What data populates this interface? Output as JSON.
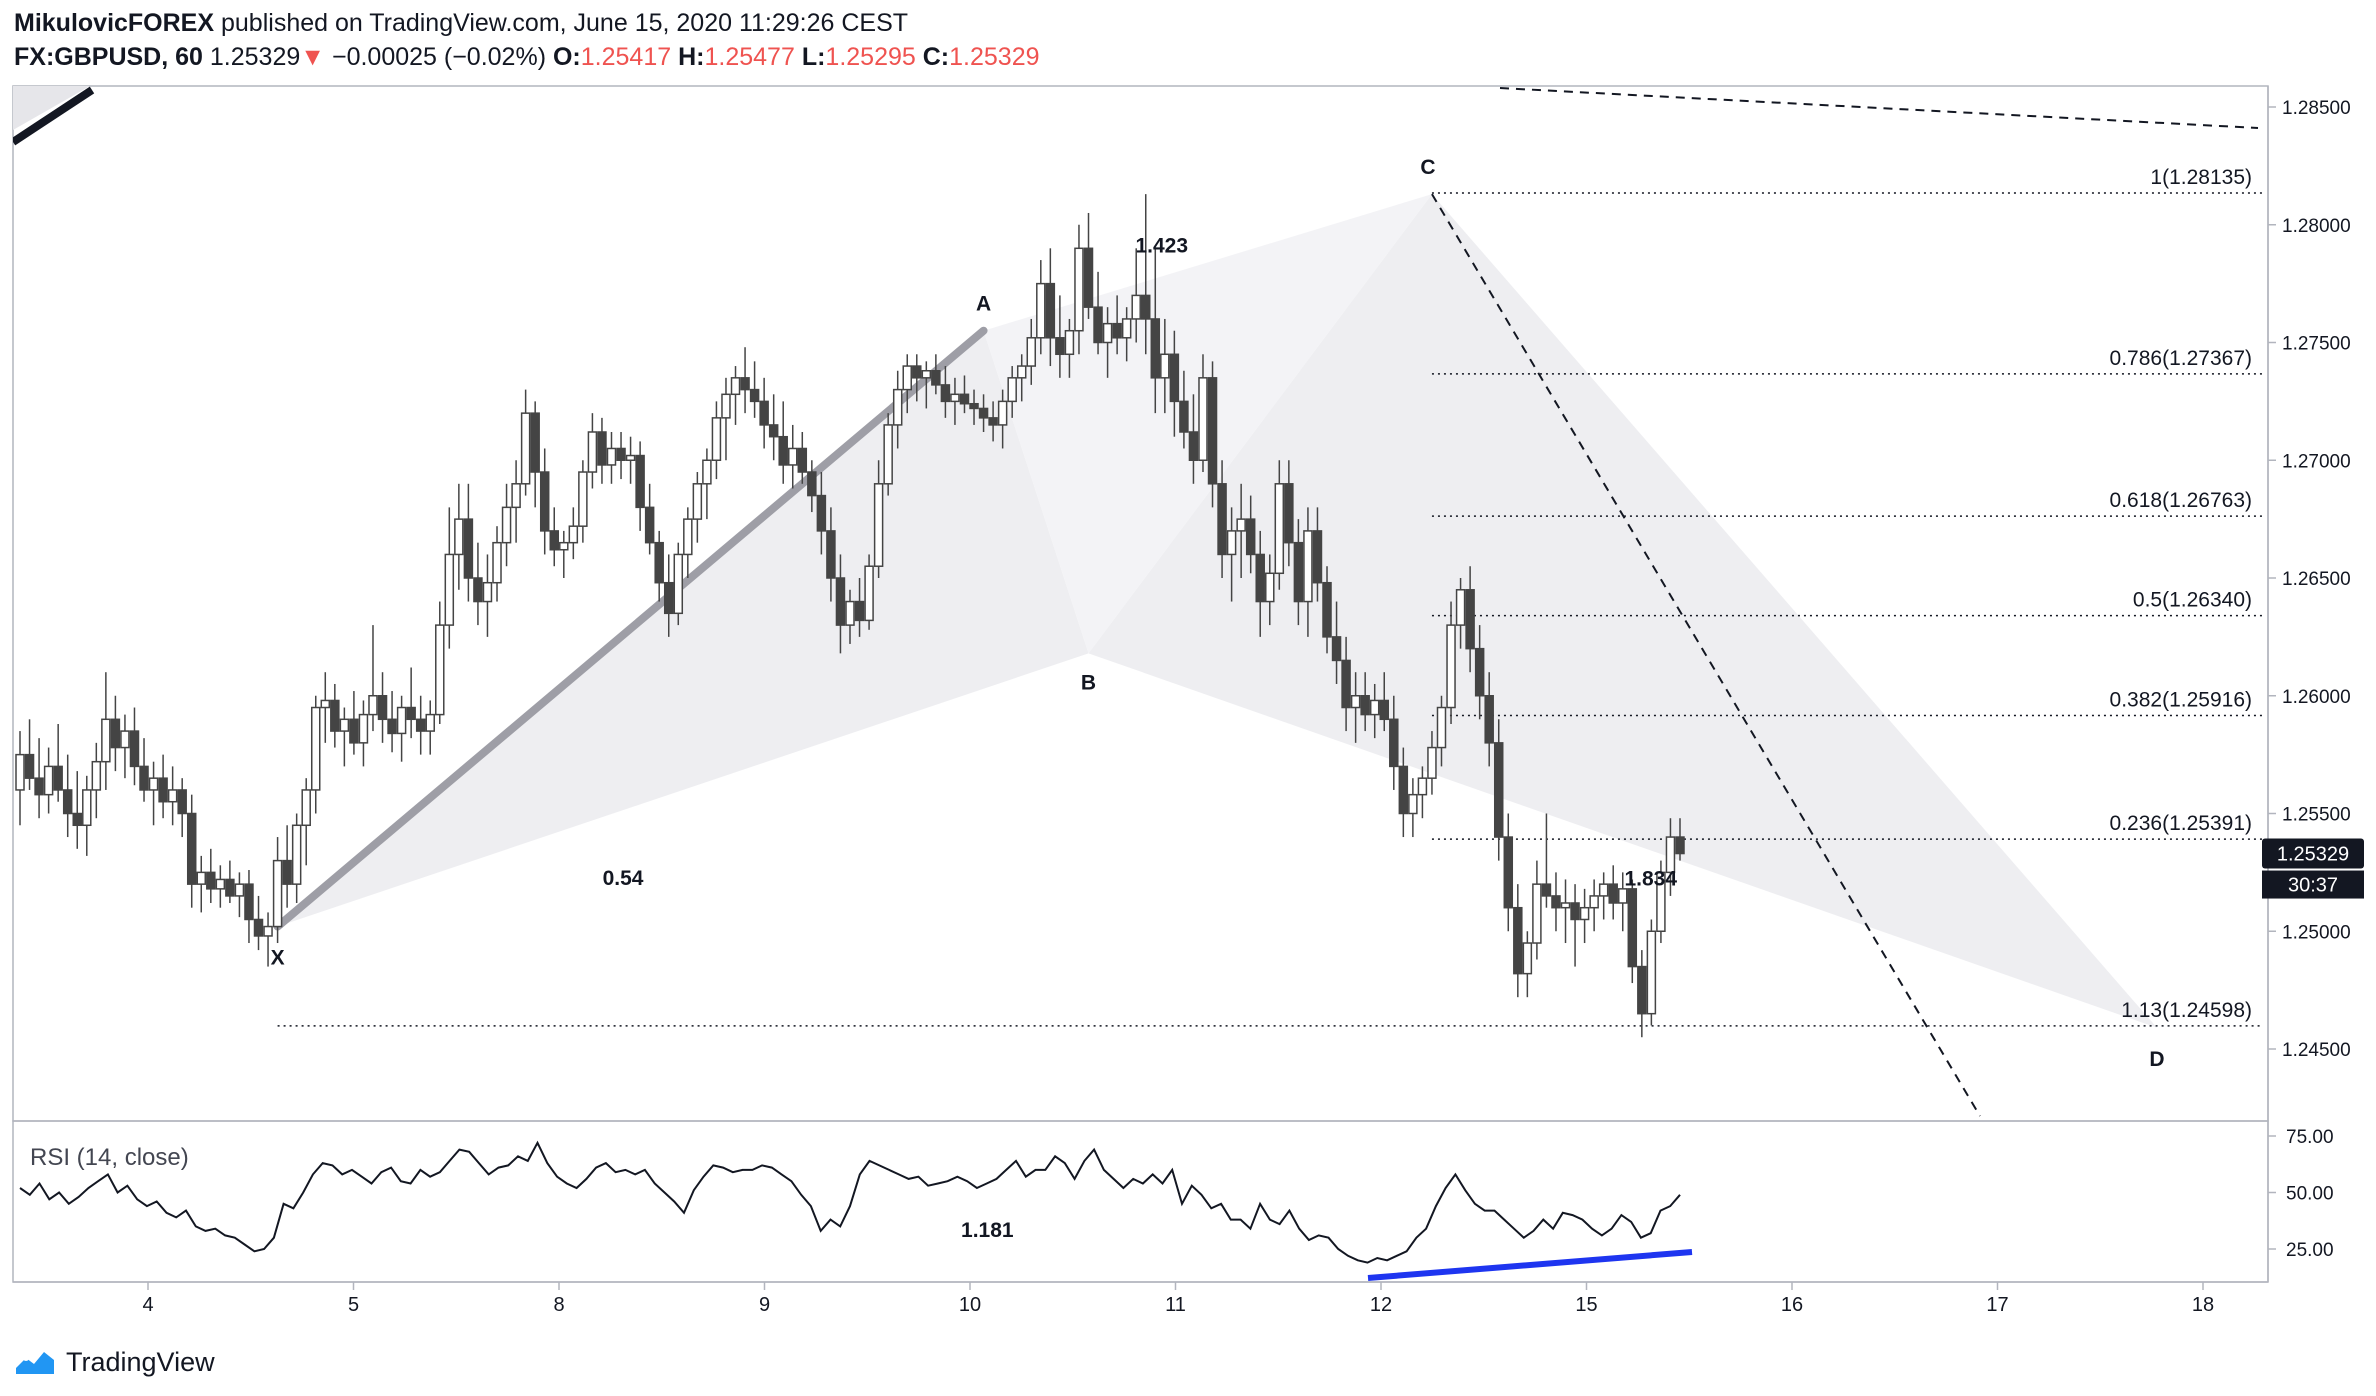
{
  "header": {
    "author": "MikulovicFOREX",
    "published_text": " published on TradingView.com, June 15, 2020 11:29:26 CEST",
    "symbol": "FX:GBPUSD, 60",
    "last": "1.25329",
    "down_arrow": "▼",
    "change": "−0.00025 (−0.02%)",
    "o_label": "O:",
    "o_value": "1.25417",
    "h_label": "H:",
    "h_value": "1.25477",
    "l_label": "L:",
    "l_value": "1.25295",
    "c_label": "C:",
    "c_value": "1.25329"
  },
  "footer": {
    "brand": "TradingView",
    "logo_icon": "tradingview-logo-icon"
  },
  "colors": {
    "up": "#ffffff",
    "down": "#444444",
    "wick": "#444444",
    "pattern_fill": "#ececf0",
    "xa_line": "#9e9ea6",
    "rsi_line": "#131722",
    "divergence": "#1e35f0",
    "price_badge": "#131722"
  },
  "chart_data": {
    "type": "candlestick",
    "price_axis": {
      "min": 1.243,
      "max": 1.286,
      "ticks": [
        "1.28500",
        "1.28000",
        "1.27500",
        "1.27000",
        "1.26500",
        "1.26000",
        "1.25500",
        "1.25000",
        "1.24500"
      ]
    },
    "time_axis": {
      "ticks": [
        "4",
        "5",
        "8",
        "9",
        "10",
        "11",
        "12",
        "15",
        "16",
        "17",
        "18"
      ]
    },
    "last_price_label": "1.25329",
    "countdown_label": "30:37",
    "fib_levels": [
      {
        "label": "1(1.28135)",
        "price": 1.28135
      },
      {
        "label": "0.786(1.27367)",
        "price": 1.27367
      },
      {
        "label": "0.618(1.26763)",
        "price": 1.26763
      },
      {
        "label": "0.5(1.26340)",
        "price": 1.2634
      },
      {
        "label": "0.382(1.25916)",
        "price": 1.25916
      },
      {
        "label": "0.236(1.25391)",
        "price": 1.25391
      },
      {
        "label": "1.13(1.24598)",
        "price": 1.24598
      }
    ],
    "pattern_points": [
      {
        "name": "X",
        "price": 1.2502
      },
      {
        "name": "A",
        "price": 1.2755
      },
      {
        "name": "B",
        "price": 1.2618
      },
      {
        "name": "C",
        "price": 1.2813
      },
      {
        "name": "D",
        "price": 1.2459
      }
    ],
    "ratios": [
      "0.54",
      "1.423",
      "1.834",
      "1.181"
    ],
    "rsi": {
      "label": "RSI (14, close)",
      "ticks": [
        "75.00",
        "50.00",
        "25.00"
      ],
      "min": 10,
      "max": 85
    },
    "candles": [
      [
        1.256,
        1.2585,
        1.2545,
        1.2575
      ],
      [
        1.2575,
        1.259,
        1.256,
        1.2565
      ],
      [
        1.2565,
        1.2582,
        1.2548,
        1.2558
      ],
      [
        1.2558,
        1.2578,
        1.255,
        1.257
      ],
      [
        1.257,
        1.2588,
        1.2555,
        1.256
      ],
      [
        1.256,
        1.2575,
        1.254,
        1.255
      ],
      [
        1.255,
        1.2568,
        1.2535,
        1.2545
      ],
      [
        1.2545,
        1.2566,
        1.2532,
        1.256
      ],
      [
        1.256,
        1.258,
        1.2548,
        1.2572
      ],
      [
        1.2572,
        1.261,
        1.256,
        1.259
      ],
      [
        1.259,
        1.26,
        1.2568,
        1.2578
      ],
      [
        1.2578,
        1.2592,
        1.2565,
        1.2585
      ],
      [
        1.2585,
        1.2595,
        1.2562,
        1.257
      ],
      [
        1.257,
        1.2582,
        1.2555,
        1.256
      ],
      [
        1.256,
        1.2572,
        1.2545,
        1.2565
      ],
      [
        1.2565,
        1.2575,
        1.2548,
        1.2555
      ],
      [
        1.2555,
        1.257,
        1.2545,
        1.256
      ],
      [
        1.256,
        1.2565,
        1.254,
        1.255
      ],
      [
        1.255,
        1.2558,
        1.251,
        1.252
      ],
      [
        1.252,
        1.2532,
        1.2508,
        1.2525
      ],
      [
        1.2525,
        1.2535,
        1.2512,
        1.2518
      ],
      [
        1.2518,
        1.2528,
        1.251,
        1.2522
      ],
      [
        1.2522,
        1.253,
        1.2512,
        1.2515
      ],
      [
        1.2515,
        1.2525,
        1.2506,
        1.252
      ],
      [
        1.252,
        1.2526,
        1.2495,
        1.2505
      ],
      [
        1.2505,
        1.2515,
        1.2492,
        1.2498
      ],
      [
        1.2498,
        1.2508,
        1.2485,
        1.2502
      ],
      [
        1.2502,
        1.254,
        1.2495,
        1.253
      ],
      [
        1.253,
        1.2545,
        1.251,
        1.252
      ],
      [
        1.252,
        1.255,
        1.2512,
        1.2545
      ],
      [
        1.2545,
        1.2565,
        1.2528,
        1.256
      ],
      [
        1.256,
        1.26,
        1.255,
        1.2595
      ],
      [
        1.2595,
        1.261,
        1.258,
        1.2598
      ],
      [
        1.2598,
        1.2605,
        1.2578,
        1.2585
      ],
      [
        1.2585,
        1.2595,
        1.257,
        1.259
      ],
      [
        1.259,
        1.2602,
        1.2575,
        1.258
      ],
      [
        1.258,
        1.2598,
        1.257,
        1.2592
      ],
      [
        1.2592,
        1.263,
        1.2585,
        1.26
      ],
      [
        1.26,
        1.261,
        1.258,
        1.259
      ],
      [
        1.259,
        1.2602,
        1.2576,
        1.2584
      ],
      [
        1.2584,
        1.26,
        1.2572,
        1.2595
      ],
      [
        1.2595,
        1.2612,
        1.2582,
        1.259
      ],
      [
        1.259,
        1.26,
        1.2575,
        1.2585
      ],
      [
        1.2585,
        1.2598,
        1.2575,
        1.2592
      ],
      [
        1.2592,
        1.264,
        1.2588,
        1.263
      ],
      [
        1.263,
        1.268,
        1.262,
        1.266
      ],
      [
        1.266,
        1.269,
        1.2645,
        1.2675
      ],
      [
        1.2675,
        1.269,
        1.264,
        1.265
      ],
      [
        1.265,
        1.2665,
        1.263,
        1.264
      ],
      [
        1.264,
        1.266,
        1.2625,
        1.2648
      ],
      [
        1.2648,
        1.2672,
        1.264,
        1.2665
      ],
      [
        1.2665,
        1.269,
        1.2655,
        1.268
      ],
      [
        1.268,
        1.27,
        1.2665,
        1.269
      ],
      [
        1.269,
        1.273,
        1.2685,
        1.272
      ],
      [
        1.272,
        1.2725,
        1.268,
        1.2695
      ],
      [
        1.2695,
        1.2705,
        1.266,
        1.267
      ],
      [
        1.267,
        1.268,
        1.2655,
        1.2662
      ],
      [
        1.2662,
        1.267,
        1.265,
        1.2665
      ],
      [
        1.2665,
        1.268,
        1.2658,
        1.2672
      ],
      [
        1.2672,
        1.27,
        1.2665,
        1.2695
      ],
      [
        1.2695,
        1.272,
        1.2688,
        1.2712
      ],
      [
        1.2712,
        1.2718,
        1.269,
        1.2698
      ],
      [
        1.2698,
        1.2712,
        1.269,
        1.2705
      ],
      [
        1.2705,
        1.2712,
        1.2692,
        1.27
      ],
      [
        1.27,
        1.271,
        1.269,
        1.2702
      ],
      [
        1.2702,
        1.2708,
        1.267,
        1.268
      ],
      [
        1.268,
        1.269,
        1.266,
        1.2665
      ],
      [
        1.2665,
        1.267,
        1.264,
        1.2648
      ],
      [
        1.2648,
        1.266,
        1.2625,
        1.2635
      ],
      [
        1.2635,
        1.2665,
        1.263,
        1.266
      ],
      [
        1.266,
        1.268,
        1.265,
        1.2675
      ],
      [
        1.2675,
        1.2695,
        1.2665,
        1.269
      ],
      [
        1.269,
        1.2705,
        1.2675,
        1.27
      ],
      [
        1.27,
        1.2725,
        1.2692,
        1.2718
      ],
      [
        1.2718,
        1.2735,
        1.27,
        1.2728
      ],
      [
        1.2728,
        1.274,
        1.2715,
        1.2735
      ],
      [
        1.2735,
        1.2748,
        1.272,
        1.273
      ],
      [
        1.273,
        1.2742,
        1.2718,
        1.2725
      ],
      [
        1.2725,
        1.2735,
        1.2705,
        1.2715
      ],
      [
        1.2715,
        1.2728,
        1.27,
        1.271
      ],
      [
        1.271,
        1.2725,
        1.269,
        1.2698
      ],
      [
        1.2698,
        1.2715,
        1.2688,
        1.2705
      ],
      [
        1.2705,
        1.2712,
        1.269,
        1.2695
      ],
      [
        1.2695,
        1.27,
        1.2678,
        1.2685
      ],
      [
        1.2685,
        1.2695,
        1.266,
        1.267
      ],
      [
        1.267,
        1.268,
        1.264,
        1.265
      ],
      [
        1.265,
        1.266,
        1.2618,
        1.263
      ],
      [
        1.263,
        1.2645,
        1.2622,
        1.264
      ],
      [
        1.264,
        1.265,
        1.2625,
        1.2632
      ],
      [
        1.2632,
        1.266,
        1.2628,
        1.2655
      ],
      [
        1.2655,
        1.27,
        1.265,
        1.269
      ],
      [
        1.269,
        1.272,
        1.2685,
        1.2715
      ],
      [
        1.2715,
        1.2738,
        1.2705,
        1.273
      ],
      [
        1.273,
        1.2745,
        1.272,
        1.274
      ],
      [
        1.274,
        1.2745,
        1.2725,
        1.2735
      ],
      [
        1.2735,
        1.2742,
        1.2722,
        1.2738
      ],
      [
        1.2738,
        1.2745,
        1.2728,
        1.2732
      ],
      [
        1.2732,
        1.274,
        1.2718,
        1.2725
      ],
      [
        1.2725,
        1.2735,
        1.2715,
        1.2728
      ],
      [
        1.2728,
        1.2736,
        1.272,
        1.2724
      ],
      [
        1.2724,
        1.273,
        1.2715,
        1.2722
      ],
      [
        1.2722,
        1.2728,
        1.2712,
        1.2718
      ],
      [
        1.2718,
        1.2725,
        1.2708,
        1.2715
      ],
      [
        1.2715,
        1.273,
        1.2705,
        1.2725
      ],
      [
        1.2725,
        1.274,
        1.2718,
        1.2735
      ],
      [
        1.2735,
        1.2745,
        1.2725,
        1.274
      ],
      [
        1.274,
        1.276,
        1.2732,
        1.2752
      ],
      [
        1.2752,
        1.2785,
        1.2745,
        1.2775
      ],
      [
        1.2775,
        1.279,
        1.274,
        1.2752
      ],
      [
        1.2752,
        1.277,
        1.2735,
        1.2745
      ],
      [
        1.2745,
        1.276,
        1.2735,
        1.2755
      ],
      [
        1.2755,
        1.28,
        1.2745,
        1.279
      ],
      [
        1.279,
        1.2805,
        1.276,
        1.2765
      ],
      [
        1.2765,
        1.278,
        1.2745,
        1.275
      ],
      [
        1.275,
        1.2765,
        1.2735,
        1.2758
      ],
      [
        1.2758,
        1.277,
        1.2745,
        1.2752
      ],
      [
        1.2752,
        1.2765,
        1.2742,
        1.276
      ],
      [
        1.276,
        1.279,
        1.275,
        1.277
      ],
      [
        1.277,
        1.2813,
        1.2745,
        1.276
      ],
      [
        1.276,
        1.279,
        1.272,
        1.2735
      ],
      [
        1.2735,
        1.276,
        1.272,
        1.2745
      ],
      [
        1.2745,
        1.2755,
        1.271,
        1.2725
      ],
      [
        1.2725,
        1.2738,
        1.2705,
        1.2712
      ],
      [
        1.2712,
        1.2728,
        1.269,
        1.27
      ],
      [
        1.27,
        1.2745,
        1.2695,
        1.2735
      ],
      [
        1.2735,
        1.2742,
        1.268,
        1.269
      ],
      [
        1.269,
        1.27,
        1.265,
        1.266
      ],
      [
        1.266,
        1.268,
        1.264,
        1.267
      ],
      [
        1.267,
        1.269,
        1.265,
        1.2675
      ],
      [
        1.2675,
        1.2685,
        1.2652,
        1.266
      ],
      [
        1.266,
        1.267,
        1.2625,
        1.264
      ],
      [
        1.264,
        1.266,
        1.263,
        1.2652
      ],
      [
        1.2652,
        1.27,
        1.2645,
        1.269
      ],
      [
        1.269,
        1.27,
        1.2655,
        1.2665
      ],
      [
        1.2665,
        1.2675,
        1.263,
        1.264
      ],
      [
        1.264,
        1.268,
        1.2625,
        1.267
      ],
      [
        1.267,
        1.268,
        1.264,
        1.2648
      ],
      [
        1.2648,
        1.2655,
        1.2618,
        1.2625
      ],
      [
        1.2625,
        1.264,
        1.2605,
        1.2615
      ],
      [
        1.2615,
        1.2625,
        1.2585,
        1.2595
      ],
      [
        1.2595,
        1.261,
        1.258,
        1.26
      ],
      [
        1.26,
        1.261,
        1.2585,
        1.2592
      ],
      [
        1.2592,
        1.2605,
        1.2582,
        1.2598
      ],
      [
        1.2598,
        1.261,
        1.2585,
        1.259
      ],
      [
        1.259,
        1.26,
        1.256,
        1.257
      ],
      [
        1.257,
        1.2578,
        1.254,
        1.255
      ],
      [
        1.255,
        1.2565,
        1.254,
        1.2558
      ],
      [
        1.2558,
        1.257,
        1.2548,
        1.2565
      ],
      [
        1.2565,
        1.2585,
        1.2558,
        1.2578
      ],
      [
        1.2578,
        1.26,
        1.257,
        1.2595
      ],
      [
        1.2595,
        1.264,
        1.2588,
        1.263
      ],
      [
        1.263,
        1.265,
        1.262,
        1.2645
      ],
      [
        1.2645,
        1.2655,
        1.261,
        1.262
      ],
      [
        1.262,
        1.263,
        1.259,
        1.26
      ],
      [
        1.26,
        1.261,
        1.257,
        1.258
      ],
      [
        1.258,
        1.259,
        1.253,
        1.254
      ],
      [
        1.254,
        1.255,
        1.25,
        1.251
      ],
      [
        1.251,
        1.252,
        1.2472,
        1.2482
      ],
      [
        1.2482,
        1.25,
        1.2472,
        1.2495
      ],
      [
        1.2495,
        1.253,
        1.2488,
        1.252
      ],
      [
        1.252,
        1.255,
        1.251,
        1.2515
      ],
      [
        1.2515,
        1.2525,
        1.25,
        1.251
      ],
      [
        1.251,
        1.2522,
        1.2495,
        1.2512
      ],
      [
        1.2512,
        1.252,
        1.2485,
        1.2505
      ],
      [
        1.2505,
        1.2518,
        1.2495,
        1.251
      ],
      [
        1.251,
        1.2522,
        1.25,
        1.2515
      ],
      [
        1.2515,
        1.2525,
        1.2505,
        1.252
      ],
      [
        1.252,
        1.2528,
        1.2505,
        1.2512
      ],
      [
        1.2512,
        1.2525,
        1.25,
        1.2518
      ],
      [
        1.2518,
        1.2522,
        1.2478,
        1.2485
      ],
      [
        1.2485,
        1.2492,
        1.2455,
        1.2465
      ],
      [
        1.2465,
        1.2505,
        1.246,
        1.25
      ],
      [
        1.25,
        1.253,
        1.2495,
        1.2525
      ],
      [
        1.2525,
        1.2548,
        1.2515,
        1.254
      ],
      [
        1.254,
        1.2548,
        1.253,
        1.2533
      ]
    ],
    "rsi_values": [
      52,
      49,
      54,
      47,
      50,
      45,
      48,
      52,
      55,
      58,
      50,
      53,
      47,
      44,
      46,
      41,
      39,
      42,
      35,
      33,
      34,
      31,
      30,
      27,
      24,
      25,
      30,
      45,
      43,
      50,
      58,
      63,
      62,
      58,
      60,
      57,
      54,
      59,
      61,
      55,
      54,
      60,
      57,
      59,
      64,
      69,
      68,
      63,
      58,
      61,
      62,
      66,
      64,
      72,
      63,
      57,
      54,
      52,
      56,
      61,
      63,
      59,
      60,
      58,
      60,
      54,
      50,
      46,
      41,
      51,
      57,
      62,
      61,
      59,
      60,
      60,
      62,
      61,
      58,
      55,
      49,
      44,
      33,
      38,
      35,
      44,
      58,
      64,
      62,
      60,
      58,
      56,
      57,
      53,
      54,
      55,
      57,
      55,
      52,
      54,
      56,
      60,
      64,
      57,
      60,
      60,
      66,
      63,
      56,
      64,
      69,
      60,
      56,
      52,
      56,
      54,
      58,
      54,
      60,
      45,
      53,
      49,
      43,
      45,
      38,
      38,
      34,
      45,
      38,
      36,
      42,
      34,
      29,
      31,
      30,
      25,
      22,
      20,
      19,
      21,
      20,
      22,
      24,
      30,
      34,
      44,
      52,
      58,
      51,
      45,
      42,
      42,
      38,
      34,
      30,
      33,
      38,
      34,
      41,
      40,
      38,
      34,
      31,
      34,
      40,
      37,
      30,
      32,
      42,
      44,
      49
    ]
  }
}
